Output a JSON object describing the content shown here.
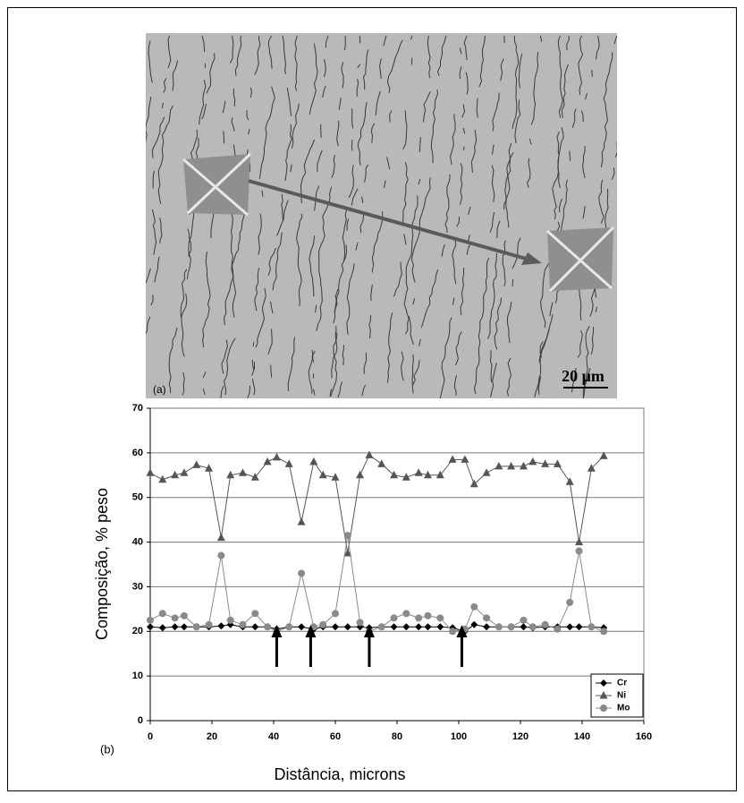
{
  "figure": {
    "panel_a": {
      "label": "(a)",
      "scale_bar": "20 μm"
    }
  },
  "chart_data": {
    "type": "line",
    "panel_label": "(b)",
    "x_label": "Distância, microns",
    "y_label": "Composição, % peso",
    "x": [
      0,
      4,
      8,
      11,
      15,
      19,
      23,
      26,
      30,
      34,
      38,
      41,
      45,
      49,
      53,
      56,
      60,
      64,
      68,
      71,
      75,
      79,
      83,
      87,
      90,
      94,
      98,
      102,
      105,
      109,
      113,
      117,
      121,
      124,
      128,
      132,
      136,
      139,
      143,
      147
    ],
    "series": [
      {
        "name": "Cr",
        "color": "#000000",
        "marker": "diamond",
        "values": [
          21,
          20.8,
          21,
          21,
          21,
          21,
          21.2,
          21.5,
          21,
          21,
          21,
          20.5,
          21,
          21,
          20.5,
          21,
          21,
          21,
          21,
          20.8,
          21,
          21,
          21,
          21,
          21,
          21,
          20.8,
          20,
          21.5,
          21,
          21,
          21,
          21,
          20.8,
          21,
          21,
          21,
          21,
          21,
          20.8
        ]
      },
      {
        "name": "Ni",
        "color": "#555555",
        "marker": "triangle",
        "values": [
          55.5,
          54,
          55,
          55.5,
          57.3,
          56.5,
          41,
          55,
          55.5,
          54.5,
          58,
          59,
          57.5,
          44.5,
          58,
          55,
          54.5,
          37.5,
          55,
          59.5,
          57.5,
          55,
          54.5,
          55.5,
          55,
          55,
          58.5,
          58.5,
          53,
          55.5,
          57,
          57,
          57,
          58,
          57.5,
          57.5,
          53.5,
          40,
          56.5,
          59.3
        ]
      },
      {
        "name": "Mo",
        "color": "#8a8a8a",
        "marker": "circle",
        "values": [
          22.5,
          24,
          23,
          23.5,
          21,
          21.5,
          37,
          22.5,
          21.5,
          24,
          21,
          20,
          21,
          33,
          21,
          21.5,
          24,
          41.5,
          22,
          20,
          21,
          23,
          24,
          23,
          23.5,
          23,
          20,
          20.5,
          25.5,
          23,
          21,
          21,
          22.5,
          21,
          21.5,
          20.5,
          26.5,
          38,
          21,
          20
        ]
      }
    ],
    "arrows": [
      41,
      52,
      71,
      101
    ],
    "xlim": [
      0,
      160
    ],
    "xticks": [
      0,
      20,
      40,
      60,
      80,
      100,
      120,
      140,
      160
    ],
    "ylim": [
      0,
      70
    ],
    "yticks": [
      0,
      10,
      20,
      30,
      40,
      50,
      60,
      70
    ],
    "grid": true,
    "legend": "lower right"
  }
}
